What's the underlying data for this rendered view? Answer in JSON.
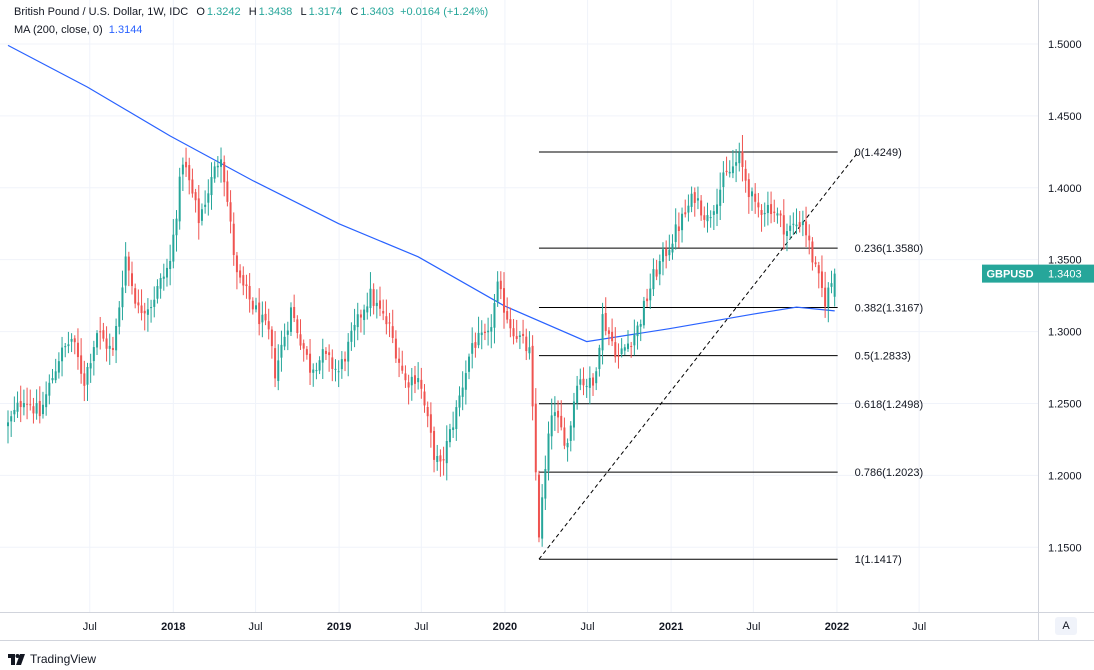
{
  "legend": {
    "title": "British Pound / U.S. Dollar, 1W, IDC",
    "open_label": "O",
    "open": "1.3242",
    "high_label": "H",
    "high": "1.3438",
    "low_label": "L",
    "low": "1.3174",
    "close_label": "C",
    "close": "1.3403",
    "change": "+0.0164 (+1.24%)",
    "ma_label": "MA (200, close, 0)",
    "ma_value": "1.3144"
  },
  "price_badge": {
    "symbol": "GBPUSD",
    "price": "1.3403"
  },
  "footer": {
    "brand": "TradingView",
    "auto_button": "A"
  },
  "colors": {
    "up": "#26a69a",
    "down": "#ef5350",
    "ma": "#2962ff",
    "badge": "#26a69a",
    "grid": "#f0f3fa",
    "fib": "#000000"
  },
  "chart_data": {
    "type": "candlestick",
    "timeframe": "1W",
    "symbol": "GBPUSD",
    "y_ticks": [
      "1.1500",
      "1.2000",
      "1.2500",
      "1.3000",
      "1.3500",
      "1.4000",
      "1.4500",
      "1.5000"
    ],
    "ylim": [
      1.105,
      1.525
    ],
    "x_labels": [
      {
        "label": "Jul",
        "date": "2017-07-01",
        "bold": false
      },
      {
        "label": "2018",
        "date": "2018-01-01",
        "bold": true
      },
      {
        "label": "Jul",
        "date": "2018-07-01",
        "bold": false
      },
      {
        "label": "2019",
        "date": "2019-01-01",
        "bold": true
      },
      {
        "label": "Jul",
        "date": "2019-07-01",
        "bold": false
      },
      {
        "label": "2020",
        "date": "2020-01-01",
        "bold": true
      },
      {
        "label": "Jul",
        "date": "2020-07-01",
        "bold": false
      },
      {
        "label": "2021",
        "date": "2021-01-01",
        "bold": true
      },
      {
        "label": "Jul",
        "date": "2021-07-01",
        "bold": false
      },
      {
        "label": "2022",
        "date": "2022-01-01",
        "bold": true
      },
      {
        "label": "Jul",
        "date": "2022-07-01",
        "bold": false
      }
    ],
    "close_anchors": [
      [
        "2017-01-02",
        1.235
      ],
      [
        "2017-02-06",
        1.255
      ],
      [
        "2017-03-13",
        1.242
      ],
      [
        "2017-04-24",
        1.282
      ],
      [
        "2017-05-22",
        1.295
      ],
      [
        "2017-06-19",
        1.266
      ],
      [
        "2017-07-17",
        1.3
      ],
      [
        "2017-08-21",
        1.285
      ],
      [
        "2017-09-18",
        1.352
      ],
      [
        "2017-10-16",
        1.315
      ],
      [
        "2017-11-13",
        1.32
      ],
      [
        "2017-12-25",
        1.348
      ],
      [
        "2018-01-22",
        1.42
      ],
      [
        "2018-02-26",
        1.378
      ],
      [
        "2018-03-26",
        1.405
      ],
      [
        "2018-04-16",
        1.425
      ],
      [
        "2018-05-21",
        1.338
      ],
      [
        "2018-06-25",
        1.318
      ],
      [
        "2018-07-30",
        1.298
      ],
      [
        "2018-08-13",
        1.272
      ],
      [
        "2018-09-17",
        1.315
      ],
      [
        "2018-10-29",
        1.275
      ],
      [
        "2018-11-26",
        1.283
      ],
      [
        "2018-12-31",
        1.272
      ],
      [
        "2019-02-25",
        1.318
      ],
      [
        "2019-03-11",
        1.325
      ],
      [
        "2019-04-22",
        1.302
      ],
      [
        "2019-05-27",
        1.265
      ],
      [
        "2019-06-24",
        1.27
      ],
      [
        "2019-07-29",
        1.215
      ],
      [
        "2019-08-12",
        1.205
      ],
      [
        "2019-09-16",
        1.245
      ],
      [
        "2019-10-21",
        1.292
      ],
      [
        "2019-11-25",
        1.295
      ],
      [
        "2019-12-16",
        1.33
      ],
      [
        "2020-01-13",
        1.305
      ],
      [
        "2020-02-24",
        1.285
      ],
      [
        "2020-03-16",
        1.16
      ],
      [
        "2020-04-13",
        1.245
      ],
      [
        "2020-05-18",
        1.222
      ],
      [
        "2020-06-08",
        1.268
      ],
      [
        "2020-07-13",
        1.262
      ],
      [
        "2020-08-03",
        1.31
      ],
      [
        "2020-09-07",
        1.282
      ],
      [
        "2020-10-19",
        1.302
      ],
      [
        "2020-11-23",
        1.338
      ],
      [
        "2021-01-04",
        1.365
      ],
      [
        "2021-02-22",
        1.395
      ],
      [
        "2021-03-22",
        1.378
      ],
      [
        "2021-04-26",
        1.405
      ],
      [
        "2021-05-31",
        1.42
      ],
      [
        "2021-07-05",
        1.385
      ],
      [
        "2021-08-09",
        1.387
      ],
      [
        "2021-09-13",
        1.37
      ],
      [
        "2021-10-18",
        1.378
      ],
      [
        "2021-11-15",
        1.342
      ],
      [
        "2021-12-06",
        1.322
      ],
      [
        "2021-12-27",
        1.3403
      ]
    ],
    "moving_average": {
      "name": "MA (200, close, 0)",
      "points": [
        [
          "2017-01-02",
          1.499
        ],
        [
          "2017-06-26",
          1.47
        ],
        [
          "2017-12-25",
          1.436
        ],
        [
          "2018-06-25",
          1.405
        ],
        [
          "2018-12-31",
          1.375
        ],
        [
          "2019-06-24",
          1.352
        ],
        [
          "2019-12-30",
          1.318
        ],
        [
          "2020-06-29",
          1.293
        ],
        [
          "2020-12-28",
          1.302
        ],
        [
          "2021-06-28",
          1.312
        ],
        [
          "2021-10-04",
          1.317
        ],
        [
          "2021-12-27",
          1.3144
        ]
      ]
    },
    "fibonacci": {
      "start_date": "2020-03-16",
      "end_date": "2021-12-27",
      "low_date": "2020-03-16",
      "low": 1.1417,
      "high_date": "2021-12-27",
      "high": 1.4249,
      "levels": [
        {
          "label": "0(1.4249)",
          "value": 1.4249
        },
        {
          "label": "0.236(1.3580)",
          "value": 1.358
        },
        {
          "label": "0.382(1.3167)",
          "value": 1.3167
        },
        {
          "label": "0.5(1.2833)",
          "value": 1.2833
        },
        {
          "label": "0.618(1.2498)",
          "value": 1.2498
        },
        {
          "label": "0.786(1.2023)",
          "value": 1.2023
        },
        {
          "label": "1(1.1417)",
          "value": 1.1417
        }
      ]
    }
  }
}
